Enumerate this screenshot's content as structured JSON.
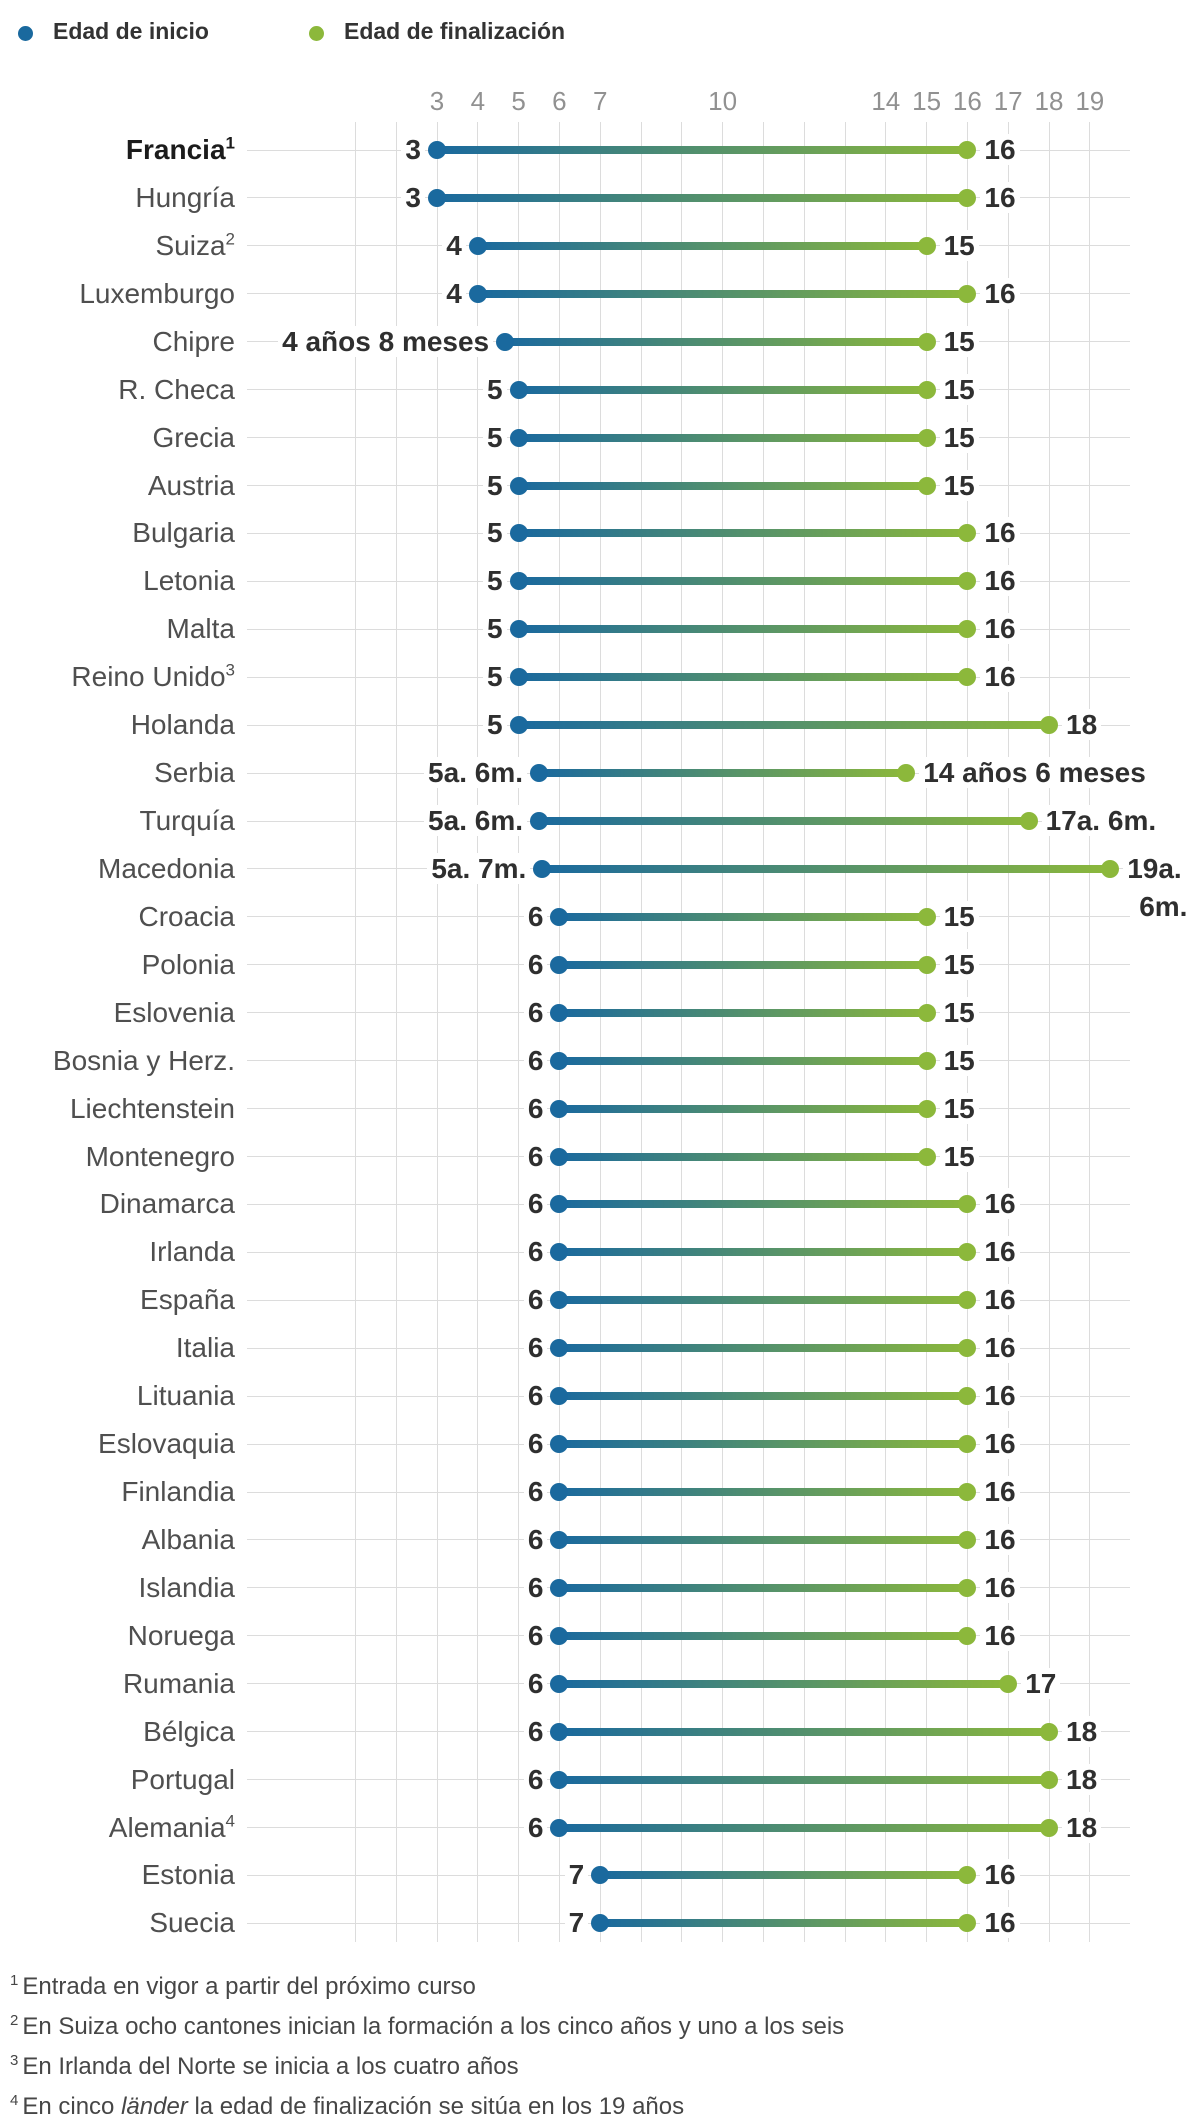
{
  "legend": {
    "start": {
      "label": "Edad de inicio",
      "color": "#1A699E"
    },
    "end": {
      "label": "Edad de finalización",
      "color": "#8CB83B"
    }
  },
  "chart_data": {
    "type": "dumbbell",
    "unit": "años",
    "colors": {
      "start": "#1A699E",
      "end": "#8CB83B",
      "grid": "#dcdcdc"
    },
    "x_axis": {
      "grid_min": 1,
      "grid_max": 19,
      "ticks": [
        {
          "v": 3,
          "label": "3"
        },
        {
          "v": 4,
          "label": "4"
        },
        {
          "v": 5,
          "label": "5"
        },
        {
          "v": 6,
          "label": "6"
        },
        {
          "v": 7,
          "label": "7"
        },
        {
          "v": 10,
          "label": "10"
        },
        {
          "v": 14,
          "label": "14"
        },
        {
          "v": 15,
          "label": "15"
        },
        {
          "v": 16,
          "label": "16"
        },
        {
          "v": 17,
          "label": "17"
        },
        {
          "v": 18,
          "label": "18"
        },
        {
          "v": 19,
          "label": "19"
        }
      ]
    },
    "series": [
      {
        "name": "Edad de inicio",
        "color": "#1A699E"
      },
      {
        "name": "Edad de finalización",
        "color": "#8CB83B"
      }
    ],
    "rows": [
      {
        "country": "Francia",
        "sup": "1",
        "emphasis": true,
        "start": 3,
        "end": 16,
        "start_label": "3",
        "end_label": "16"
      },
      {
        "country": "Hungría",
        "start": 3,
        "end": 16,
        "start_label": "3",
        "end_label": "16"
      },
      {
        "country": "Suiza",
        "sup": "2",
        "start": 4,
        "end": 15,
        "start_label": "4",
        "end_label": "15"
      },
      {
        "country": "Luxemburgo",
        "start": 4,
        "end": 16,
        "start_label": "4",
        "end_label": "16"
      },
      {
        "country": "Chipre",
        "start": 4.67,
        "end": 15,
        "start_label": "4 años 8 meses",
        "end_label": "15"
      },
      {
        "country": "R. Checa",
        "start": 5,
        "end": 15,
        "start_label": "5",
        "end_label": "15"
      },
      {
        "country": "Grecia",
        "start": 5,
        "end": 15,
        "start_label": "5",
        "end_label": "15"
      },
      {
        "country": "Austria",
        "start": 5,
        "end": 15,
        "start_label": "5",
        "end_label": "15"
      },
      {
        "country": "Bulgaria",
        "start": 5,
        "end": 16,
        "start_label": "5",
        "end_label": "16"
      },
      {
        "country": "Letonia",
        "start": 5,
        "end": 16,
        "start_label": "5",
        "end_label": "16"
      },
      {
        "country": "Malta",
        "start": 5,
        "end": 16,
        "start_label": "5",
        "end_label": "16"
      },
      {
        "country": "Reino Unido",
        "sup": "3",
        "start": 5,
        "end": 16,
        "start_label": "5",
        "end_label": "16"
      },
      {
        "country": "Holanda",
        "start": 5,
        "end": 18,
        "start_label": "5",
        "end_label": "18"
      },
      {
        "country": "Serbia",
        "start": 5.5,
        "end": 14.5,
        "start_label": "5a. 6m.",
        "end_label": "14 años 6 meses"
      },
      {
        "country": "Turquía",
        "start": 5.5,
        "end": 17.5,
        "start_label": "5a. 6m.",
        "end_label": "17a. 6m."
      },
      {
        "country": "Macedonia",
        "start": 5.58,
        "end": 19.5,
        "start_label": "5a. 7m.",
        "end_label": "19a.",
        "end_label_line2": "6m."
      },
      {
        "country": "Croacia",
        "start": 6,
        "end": 15,
        "start_label": "6",
        "end_label": "15"
      },
      {
        "country": "Polonia",
        "start": 6,
        "end": 15,
        "start_label": "6",
        "end_label": "15"
      },
      {
        "country": "Eslovenia",
        "start": 6,
        "end": 15,
        "start_label": "6",
        "end_label": "15"
      },
      {
        "country": "Bosnia y Herz.",
        "start": 6,
        "end": 15,
        "start_label": "6",
        "end_label": "15"
      },
      {
        "country": "Liechtenstein",
        "start": 6,
        "end": 15,
        "start_label": "6",
        "end_label": "15"
      },
      {
        "country": "Montenegro",
        "start": 6,
        "end": 15,
        "start_label": "6",
        "end_label": "15"
      },
      {
        "country": "Dinamarca",
        "start": 6,
        "end": 16,
        "start_label": "6",
        "end_label": "16"
      },
      {
        "country": "Irlanda",
        "start": 6,
        "end": 16,
        "start_label": "6",
        "end_label": "16"
      },
      {
        "country": "España",
        "start": 6,
        "end": 16,
        "start_label": "6",
        "end_label": "16"
      },
      {
        "country": "Italia",
        "start": 6,
        "end": 16,
        "start_label": "6",
        "end_label": "16"
      },
      {
        "country": "Lituania",
        "start": 6,
        "end": 16,
        "start_label": "6",
        "end_label": "16"
      },
      {
        "country": "Eslovaquia",
        "start": 6,
        "end": 16,
        "start_label": "6",
        "end_label": "16"
      },
      {
        "country": "Finlandia",
        "start": 6,
        "end": 16,
        "start_label": "6",
        "end_label": "16"
      },
      {
        "country": "Albania",
        "start": 6,
        "end": 16,
        "start_label": "6",
        "end_label": "16"
      },
      {
        "country": "Islandia",
        "start": 6,
        "end": 16,
        "start_label": "6",
        "end_label": "16"
      },
      {
        "country": "Noruega",
        "start": 6,
        "end": 16,
        "start_label": "6",
        "end_label": "16"
      },
      {
        "country": "Rumania",
        "start": 6,
        "end": 17,
        "start_label": "6",
        "end_label": "17"
      },
      {
        "country": "Bélgica",
        "start": 6,
        "end": 18,
        "start_label": "6",
        "end_label": "18"
      },
      {
        "country": "Portugal",
        "start": 6,
        "end": 18,
        "start_label": "6",
        "end_label": "18"
      },
      {
        "country": "Alemania",
        "sup": "4",
        "start": 6,
        "end": 18,
        "start_label": "6",
        "end_label": "18"
      },
      {
        "country": "Estonia",
        "start": 7,
        "end": 16,
        "start_label": "7",
        "end_label": "16"
      },
      {
        "country": "Suecia",
        "start": 7,
        "end": 16,
        "start_label": "7",
        "end_label": "16"
      }
    ]
  },
  "footnotes": [
    {
      "marker": "1",
      "segments": [
        {
          "t": "Entrada en vigor a partir del próximo curso"
        }
      ]
    },
    {
      "marker": "2",
      "segments": [
        {
          "t": "En Suiza ocho cantones inician la formación a los cinco años y uno a los seis"
        }
      ]
    },
    {
      "marker": "3",
      "segments": [
        {
          "t": "En Irlanda del Norte se inicia a los cuatro años"
        }
      ]
    },
    {
      "marker": "4",
      "segments": [
        {
          "t": "En cinco "
        },
        {
          "t": "länder",
          "italic": true
        },
        {
          "t": " la edad de finalización se sitúa en los 19 años"
        }
      ]
    }
  ]
}
